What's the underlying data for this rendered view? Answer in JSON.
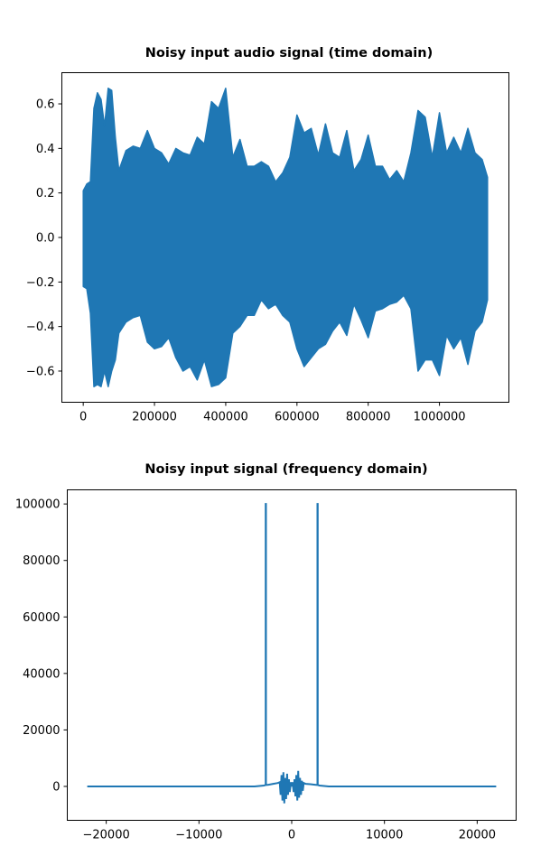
{
  "chart_data": [
    {
      "type": "line",
      "title": "Noisy input audio signal  (time domain)",
      "xlabel": "",
      "ylabel": "",
      "xlim": [
        -60000,
        1195000
      ],
      "ylim": [
        -0.74,
        0.74
      ],
      "x_ticks": [
        0,
        200000,
        400000,
        600000,
        800000,
        1000000
      ],
      "x_tick_labels": [
        "0",
        "200000",
        "400000",
        "600000",
        "800000",
        "1000000"
      ],
      "y_ticks": [
        -0.6,
        -0.4,
        -0.2,
        0.0,
        0.2,
        0.4,
        0.6
      ],
      "y_tick_labels": [
        "−0.6",
        "−0.4",
        "−0.2",
        "0.0",
        "0.2",
        "0.4",
        "0.6"
      ],
      "grid": false,
      "color": "#1f77b4",
      "series": [
        {
          "x": [
            0,
            10000,
            20000,
            30000,
            40000,
            50000,
            60000,
            70000,
            80000,
            90000,
            100000,
            120000,
            140000,
            160000,
            180000,
            200000,
            220000,
            240000,
            260000,
            280000,
            300000,
            320000,
            340000,
            360000,
            380000,
            400000,
            420000,
            440000,
            460000,
            480000,
            500000,
            520000,
            540000,
            560000,
            580000,
            600000,
            620000,
            640000,
            660000,
            680000,
            700000,
            720000,
            740000,
            760000,
            780000,
            800000,
            820000,
            840000,
            860000,
            880000,
            900000,
            920000,
            940000,
            960000,
            980000,
            1000000,
            1020000,
            1040000,
            1060000,
            1080000,
            1100000,
            1120000,
            1135000
          ],
          "upper": [
            0.21,
            0.24,
            0.25,
            0.58,
            0.65,
            0.62,
            0.5,
            0.67,
            0.66,
            0.45,
            0.3,
            0.39,
            0.41,
            0.4,
            0.48,
            0.4,
            0.38,
            0.33,
            0.4,
            0.38,
            0.37,
            0.45,
            0.42,
            0.61,
            0.58,
            0.67,
            0.36,
            0.44,
            0.32,
            0.32,
            0.34,
            0.32,
            0.25,
            0.29,
            0.36,
            0.55,
            0.47,
            0.49,
            0.37,
            0.51,
            0.38,
            0.36,
            0.48,
            0.3,
            0.35,
            0.46,
            0.32,
            0.32,
            0.26,
            0.3,
            0.25,
            0.38,
            0.57,
            0.54,
            0.36,
            0.56,
            0.38,
            0.45,
            0.38,
            0.49,
            0.38,
            0.35,
            0.27
          ],
          "lower": [
            -0.22,
            -0.23,
            -0.34,
            -0.67,
            -0.66,
            -0.67,
            -0.6,
            -0.67,
            -0.6,
            -0.55,
            -0.43,
            -0.38,
            -0.36,
            -0.35,
            -0.47,
            -0.5,
            -0.49,
            -0.45,
            -0.54,
            -0.6,
            -0.58,
            -0.64,
            -0.55,
            -0.67,
            -0.66,
            -0.63,
            -0.43,
            -0.4,
            -0.35,
            -0.35,
            -0.28,
            -0.32,
            -0.3,
            -0.35,
            -0.38,
            -0.5,
            -0.58,
            -0.54,
            -0.5,
            -0.48,
            -0.42,
            -0.38,
            -0.44,
            -0.3,
            -0.37,
            -0.45,
            -0.33,
            -0.32,
            -0.3,
            -0.29,
            -0.26,
            -0.32,
            -0.6,
            -0.55,
            -0.55,
            -0.62,
            -0.44,
            -0.5,
            -0.45,
            -0.57,
            -0.42,
            -0.38,
            -0.28
          ]
        }
      ]
    },
    {
      "type": "line",
      "title": "Noisy input signal (frequency domain)",
      "xlabel": "",
      "ylabel": "",
      "xlim": [
        -24200,
        24200
      ],
      "ylim": [
        -12000,
        105000
      ],
      "x_ticks": [
        -20000,
        -10000,
        0,
        10000,
        20000
      ],
      "x_tick_labels": [
        "−20000",
        "−10000",
        "0",
        "10000",
        "20000"
      ],
      "y_ticks": [
        0,
        20000,
        40000,
        60000,
        80000,
        100000
      ],
      "y_tick_labels": [
        "0",
        "20000",
        "40000",
        "60000",
        "80000",
        "100000"
      ],
      "grid": false,
      "color": "#1f77b4",
      "series": [
        {
          "x": [
            -22050,
            -4000,
            -3000,
            -2800,
            -2800,
            -2780,
            -2780,
            -2500,
            -2000,
            -1500,
            -1300,
            -1200,
            -1100,
            -1000,
            -900,
            -800,
            -700,
            -600,
            -500,
            -400,
            -300,
            -200,
            -100,
            0,
            100,
            200,
            300,
            400,
            500,
            600,
            700,
            800,
            900,
            1000,
            1100,
            1200,
            1300,
            1500,
            2000,
            2500,
            2780,
            2780,
            2800,
            2800,
            3000,
            4000,
            22050
          ],
          "y": [
            0,
            0,
            300,
            500,
            100000,
            100000,
            500,
            600,
            900,
            1200,
            1500,
            -3000,
            4000,
            -5000,
            5000,
            -6000,
            3000,
            -4500,
            4500,
            -3000,
            2500,
            -2000,
            1500,
            0,
            1500,
            -2000,
            2500,
            -3500,
            4000,
            -5000,
            5500,
            -4000,
            3000,
            -3000,
            2000,
            -1500,
            1200,
            900,
            800,
            600,
            500,
            100000,
            100000,
            500,
            300,
            0,
            0
          ]
        }
      ]
    }
  ]
}
